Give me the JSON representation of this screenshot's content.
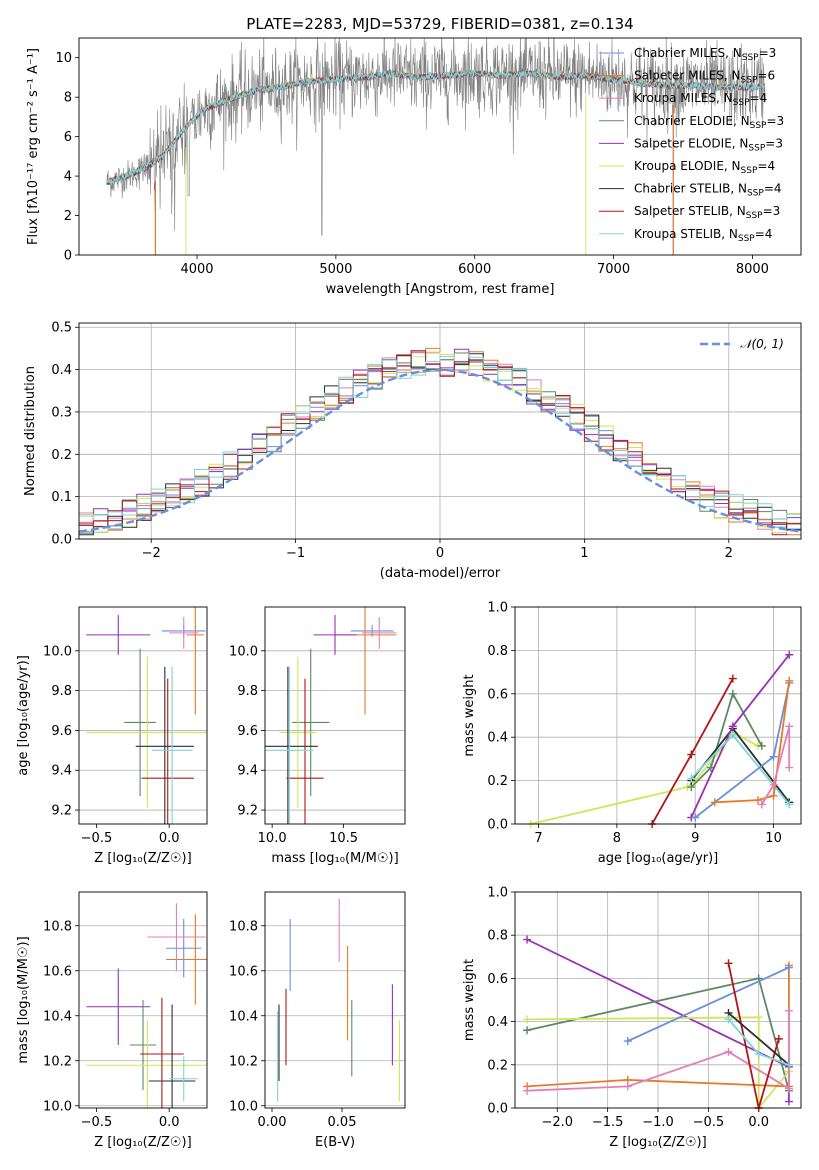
{
  "colors": {
    "chabrier_miles": "#6a8fdc",
    "salpeter_miles": "#e8792a",
    "kroupa_miles": "#e37fb7",
    "chabrier_elodie": "#5c8a62",
    "salpeter_elodie": "#9b30b5",
    "kroupa_elodie": "#cfe65a",
    "chabrier_stelib": "#2e2e2e",
    "salpeter_stelib": "#b01616",
    "kroupa_stelib": "#7fd3dc",
    "data_spectrum": "#808080",
    "normal_curve": "#6a8fdc"
  },
  "chart_data": [
    {
      "id": "spectrum",
      "type": "line",
      "title": "PLATE=2283, MJD=53729, FIBERID=0381, z=0.134",
      "xlabel": "wavelength [Angstrom, rest frame]",
      "ylabel": "Flux [fλ10⁻¹⁷ erg cm⁻² s⁻¹ A⁻¹]",
      "xlim": [
        3150,
        8350
      ],
      "ylim": [
        0,
        11
      ],
      "xticks": [
        4000,
        5000,
        6000,
        7000,
        8000
      ],
      "yticks": [
        0,
        2,
        4,
        6,
        8,
        10
      ],
      "legend_position": "right",
      "legend": [
        {
          "key": "chabrier_miles",
          "label": "Chabrier MILES, N",
          "sub": "SSP",
          "suffix": "=3"
        },
        {
          "key": "salpeter_miles",
          "label": "Salpeter MILES, N",
          "sub": "SSP",
          "suffix": "=6"
        },
        {
          "key": "kroupa_miles",
          "label": "Kroupa MILES, N",
          "sub": "SSP",
          "suffix": "=4"
        },
        {
          "key": "chabrier_elodie",
          "label": "Chabrier ELODIE, N",
          "sub": "SSP",
          "suffix": "=3"
        },
        {
          "key": "salpeter_elodie",
          "label": "Salpeter ELODIE, N",
          "sub": "SSP",
          "suffix": "=3"
        },
        {
          "key": "kroupa_elodie",
          "label": "Kroupa ELODIE, N",
          "sub": "SSP",
          "suffix": "=4"
        },
        {
          "key": "chabrier_stelib",
          "label": "Chabrier STELIB, N",
          "sub": "SSP",
          "suffix": "=4"
        },
        {
          "key": "salpeter_stelib",
          "label": "Salpeter STELIB, N",
          "sub": "SSP",
          "suffix": "=3"
        },
        {
          "key": "kroupa_stelib",
          "label": "Kroupa STELIB, N",
          "sub": "SSP",
          "suffix": "=4"
        }
      ],
      "data_wavelength_range": [
        3350,
        8090
      ],
      "model_envelope": {
        "x": [
          3350,
          3500,
          3650,
          3750,
          3850,
          3950,
          4050,
          4200,
          4400,
          4600,
          4800,
          5000,
          5200,
          5400,
          5600,
          5800,
          6000,
          6200,
          6400,
          6600,
          6800,
          7000,
          7200,
          7400,
          7600,
          7800,
          8000,
          8090
        ],
        "y": [
          3.7,
          4.0,
          4.5,
          5.0,
          5.9,
          6.7,
          7.4,
          7.8,
          8.3,
          8.5,
          8.8,
          8.9,
          9.0,
          9.2,
          9.0,
          9.1,
          9.2,
          9.1,
          9.2,
          9.0,
          9.1,
          8.9,
          8.7,
          8.6,
          8.6,
          8.5,
          8.5,
          8.6
        ]
      }
    },
    {
      "id": "residuals",
      "type": "step",
      "xlabel": "(data-model)/error",
      "ylabel": "Normed distribution",
      "xlim": [
        -2.5,
        2.5
      ],
      "ylim": [
        0,
        0.51
      ],
      "xticks": [
        -2,
        -1,
        0,
        1,
        2
      ],
      "yticks": [
        0.0,
        0.1,
        0.2,
        0.3,
        0.4,
        0.5
      ],
      "grid": true,
      "legend_position": "top-right",
      "legend_label": "𝒩(0, 1)",
      "bin_width": 0.1,
      "bin_start": -2.5,
      "normal_pdf": {
        "mean": 0,
        "sigma": 1
      }
    },
    {
      "id": "age_vs_Z",
      "type": "errorbar",
      "xlabel": "Z [log₁₀(Z/Z☉)]",
      "ylabel": "age  [log₁₀(age/yr)]",
      "xlim": [
        -0.62,
        0.26
      ],
      "ylim": [
        9.13,
        10.22
      ],
      "xticks": [
        -0.5,
        0.0
      ],
      "yticks": [
        9.2,
        9.4,
        9.6,
        9.8,
        10.0
      ],
      "points": [
        {
          "key": "chabrier_miles",
          "x": 0.1,
          "y": 10.1,
          "xerr": 0.15,
          "yerr": 0.03
        },
        {
          "key": "salpeter_miles",
          "x": 0.18,
          "y": 10.08,
          "xerr": 0.06,
          "yerr": 0.4
        },
        {
          "key": "kroupa_miles",
          "x": 0.1,
          "y": 10.09,
          "xerr": 0.1,
          "yerr": 0.08
        },
        {
          "key": "chabrier_elodie",
          "x": -0.2,
          "y": 9.64,
          "xerr": 0.11,
          "yerr": 0.37
        },
        {
          "key": "salpeter_elodie",
          "x": -0.35,
          "y": 10.08,
          "xerr": 0.22,
          "yerr": 0.1
        },
        {
          "key": "kroupa_elodie",
          "x": -0.15,
          "y": 9.59,
          "xerr": 0.42,
          "yerr": 0.38
        },
        {
          "key": "chabrier_stelib",
          "x": -0.03,
          "y": 9.52,
          "xerr": 0.2,
          "yerr": 0.4
        },
        {
          "key": "salpeter_stelib",
          "x": -0.01,
          "y": 9.36,
          "xerr": 0.18,
          "yerr": 0.5
        },
        {
          "key": "kroupa_stelib",
          "x": 0.02,
          "y": 9.5,
          "xerr": 0.14,
          "yerr": 0.42
        }
      ]
    },
    {
      "id": "age_vs_mass",
      "type": "errorbar",
      "xlabel": "mass [log₁₀(M/M☉)]",
      "ylabel": "",
      "xlim": [
        9.95,
        10.93
      ],
      "ylim": [
        9.13,
        10.22
      ],
      "xticks": [
        10.0,
        10.5
      ],
      "yticks": [
        9.2,
        9.4,
        9.6,
        9.8,
        10.0
      ],
      "points": [
        {
          "key": "chabrier_miles",
          "x": 10.7,
          "y": 10.1,
          "xerr": 0.15,
          "yerr": 0.03
        },
        {
          "key": "salpeter_miles",
          "x": 10.65,
          "y": 10.08,
          "xerr": 0.22,
          "yerr": 0.4
        },
        {
          "key": "kroupa_miles",
          "x": 10.75,
          "y": 10.09,
          "xerr": 0.12,
          "yerr": 0.08
        },
        {
          "key": "chabrier_elodie",
          "x": 10.27,
          "y": 9.64,
          "xerr": 0.13,
          "yerr": 0.37
        },
        {
          "key": "salpeter_elodie",
          "x": 10.44,
          "y": 10.08,
          "xerr": 0.15,
          "yerr": 0.1
        },
        {
          "key": "kroupa_elodie",
          "x": 10.18,
          "y": 9.59,
          "xerr": 0.13,
          "yerr": 0.38
        },
        {
          "key": "chabrier_stelib",
          "x": 10.11,
          "y": 9.52,
          "xerr": 0.21,
          "yerr": 0.4
        },
        {
          "key": "salpeter_stelib",
          "x": 10.23,
          "y": 9.36,
          "xerr": 0.13,
          "yerr": 0.5
        },
        {
          "key": "kroupa_stelib",
          "x": 10.12,
          "y": 9.5,
          "xerr": 0.17,
          "yerr": 0.42
        }
      ]
    },
    {
      "id": "mass_weight_vs_age",
      "type": "line",
      "xlabel": "age  [log₁₀(age/yr)]",
      "ylabel": "mass weight",
      "xlim": [
        6.7,
        10.35
      ],
      "ylim": [
        0,
        1.0
      ],
      "xticks": [
        7,
        8,
        9,
        10
      ],
      "yticks": [
        0.0,
        0.2,
        0.4,
        0.6,
        0.8,
        1.0
      ],
      "grid": true,
      "series": [
        {
          "key": "kroupa_elodie",
          "x": [
            6.9,
            8.9,
            9.0,
            9.5,
            9.8
          ],
          "y": [
            0.0,
            0.17,
            0.2,
            0.42,
            0.36
          ]
        },
        {
          "key": "salpeter_stelib",
          "x": [
            8.45,
            8.95,
            9.48
          ],
          "y": [
            0.0,
            0.32,
            0.67
          ]
        },
        {
          "key": "chabrier_elodie",
          "x": [
            8.95,
            9.2,
            9.48,
            9.85
          ],
          "y": [
            0.17,
            0.26,
            0.6,
            0.36
          ]
        },
        {
          "key": "chabrier_stelib",
          "x": [
            8.95,
            9.48,
            10.2
          ],
          "y": [
            0.2,
            0.44,
            0.1
          ]
        },
        {
          "key": "salpeter_elodie",
          "x": [
            8.95,
            9.48,
            10.2
          ],
          "y": [
            0.03,
            0.45,
            0.78
          ]
        },
        {
          "key": "kroupa_stelib",
          "x": [
            8.95,
            9.48,
            10.2
          ],
          "y": [
            0.21,
            0.41,
            0.09
          ]
        },
        {
          "key": "chabrier_miles",
          "x": [
            9.0,
            10.0,
            10.2
          ],
          "y": [
            0.03,
            0.31,
            0.65
          ]
        },
        {
          "key": "salpeter_miles",
          "x": [
            9.25,
            9.8,
            10.0,
            10.2
          ],
          "y": [
            0.1,
            0.11,
            0.13,
            0.66
          ]
        },
        {
          "key": "kroupa_miles",
          "x": [
            9.85,
            10.0,
            10.2,
            10.2
          ],
          "y": [
            0.09,
            0.18,
            0.45,
            0.26
          ]
        }
      ]
    },
    {
      "id": "mass_vs_Z",
      "type": "errorbar",
      "xlabel": "Z [log₁₀(Z/Z☉)]",
      "ylabel": "mass [log₁₀(M/M☉)]",
      "xlim": [
        -0.62,
        0.26
      ],
      "ylim": [
        9.99,
        10.95
      ],
      "xticks": [
        -0.5,
        0.0
      ],
      "yticks": [
        10.0,
        10.2,
        10.4,
        10.6,
        10.8
      ],
      "points": [
        {
          "key": "chabrier_miles",
          "x": 0.1,
          "y": 10.7,
          "xerr": 0.12,
          "yerr": 0.13
        },
        {
          "key": "salpeter_miles",
          "x": 0.18,
          "y": 10.65,
          "xerr": 0.2,
          "yerr": 0.2
        },
        {
          "key": "kroupa_miles",
          "x": 0.05,
          "y": 10.75,
          "xerr": 0.2,
          "yerr": 0.15
        },
        {
          "key": "chabrier_elodie",
          "x": -0.18,
          "y": 10.27,
          "xerr": 0.09,
          "yerr": 0.2
        },
        {
          "key": "salpeter_elodie",
          "x": -0.35,
          "y": 10.44,
          "xerr": 0.22,
          "yerr": 0.17
        },
        {
          "key": "kroupa_elodie",
          "x": -0.15,
          "y": 10.18,
          "xerr": 0.42,
          "yerr": 0.2
        },
        {
          "key": "chabrier_stelib",
          "x": 0.02,
          "y": 10.11,
          "xerr": 0.16,
          "yerr": 0.34
        },
        {
          "key": "salpeter_stelib",
          "x": -0.05,
          "y": 10.23,
          "xerr": 0.15,
          "yerr": 0.25
        },
        {
          "key": "kroupa_stelib",
          "x": 0.1,
          "y": 10.12,
          "xerr": 0.1,
          "yerr": 0.1
        }
      ]
    },
    {
      "id": "mass_vs_ebv",
      "type": "errorbar",
      "xlabel": "E(B-V)",
      "ylabel": "",
      "xlim": [
        -0.005,
        0.095
      ],
      "ylim": [
        9.99,
        10.95
      ],
      "xticks": [
        0.0,
        0.05
      ],
      "yticks": [
        10.0,
        10.2,
        10.4,
        10.6,
        10.8
      ],
      "points": [
        {
          "key": "chabrier_miles",
          "x": 0.013,
          "y": 10.67,
          "xerr": 0,
          "yerr": 0.16
        },
        {
          "key": "salpeter_miles",
          "x": 0.054,
          "y": 10.5,
          "xerr": 0,
          "yerr": 0.21
        },
        {
          "key": "kroupa_miles",
          "x": 0.048,
          "y": 10.78,
          "xerr": 0,
          "yerr": 0.14
        },
        {
          "key": "chabrier_elodie",
          "x": 0.057,
          "y": 10.3,
          "xerr": 0,
          "yerr": 0.17
        },
        {
          "key": "salpeter_elodie",
          "x": 0.086,
          "y": 10.36,
          "xerr": 0,
          "yerr": 0.18
        },
        {
          "key": "kroupa_elodie",
          "x": 0.091,
          "y": 10.2,
          "xerr": 0,
          "yerr": 0.18
        },
        {
          "key": "chabrier_stelib",
          "x": 0.005,
          "y": 10.28,
          "xerr": 0,
          "yerr": 0.17
        },
        {
          "key": "salpeter_stelib",
          "x": 0.01,
          "y": 10.35,
          "xerr": 0,
          "yerr": 0.17
        },
        {
          "key": "kroupa_stelib",
          "x": 0.004,
          "y": 10.22,
          "xerr": 0,
          "yerr": 0.2
        }
      ]
    },
    {
      "id": "mass_weight_vs_Z",
      "type": "line",
      "xlabel": "Z [log₁₀(Z/Z☉)]",
      "ylabel": "mass weight",
      "xlim": [
        -2.42,
        0.42
      ],
      "ylim": [
        0,
        1.0
      ],
      "xticks": [
        -2.0,
        -1.5,
        -1.0,
        -0.5,
        0.0
      ],
      "yticks": [
        0.0,
        0.2,
        0.4,
        0.6,
        0.8,
        1.0
      ],
      "grid": true,
      "series": [
        {
          "key": "salpeter_elodie",
          "x": [
            -2.3,
            0.3,
            0.3
          ],
          "y": [
            0.78,
            0.19,
            0.03
          ]
        },
        {
          "key": "chabrier_elodie",
          "x": [
            -2.3,
            0.0,
            0.3
          ],
          "y": [
            0.36,
            0.6,
            0.08
          ]
        },
        {
          "key": "kroupa_elodie",
          "x": [
            -2.3,
            0.0,
            0.0,
            0.3
          ],
          "y": [
            0.41,
            0.42,
            0.0,
            0.17
          ]
        },
        {
          "key": "salpeter_miles",
          "x": [
            -2.3,
            -1.3,
            0.3,
            0.3
          ],
          "y": [
            0.1,
            0.13,
            0.1,
            0.66
          ]
        },
        {
          "key": "kroupa_miles",
          "x": [
            -2.3,
            -1.3,
            -0.3,
            0.3,
            0.3
          ],
          "y": [
            0.08,
            0.1,
            0.26,
            0.09,
            0.45
          ]
        },
        {
          "key": "chabrier_miles",
          "x": [
            -1.3,
            0.3
          ],
          "y": [
            0.31,
            0.65
          ]
        },
        {
          "key": "salpeter_stelib",
          "x": [
            -0.3,
            0.0,
            0.2
          ],
          "y": [
            0.67,
            0.0,
            0.32
          ]
        },
        {
          "key": "chabrier_stelib",
          "x": [
            -0.3,
            0.3
          ],
          "y": [
            0.44,
            0.2
          ]
        },
        {
          "key": "kroupa_stelib",
          "x": [
            -0.3,
            0.0,
            0.3
          ],
          "y": [
            0.41,
            0.25,
            0.2
          ]
        }
      ]
    }
  ]
}
